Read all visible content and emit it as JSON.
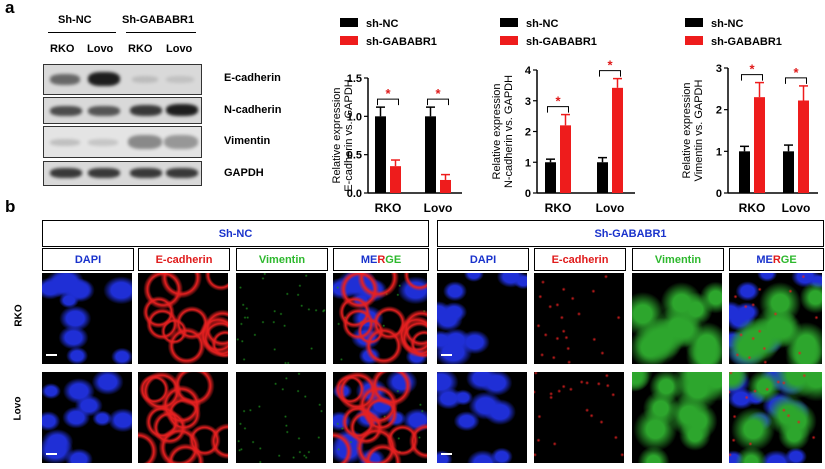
{
  "panel_a": {
    "letter": "a",
    "western_blot": {
      "groups": [
        "Sh-NC",
        "Sh-GABABR1"
      ],
      "lanes": [
        "RKO",
        "Lovo",
        "RKO",
        "Lovo"
      ],
      "proteins": [
        "E-cadherin",
        "N-cadherin",
        "Vimentin",
        "GAPDH"
      ]
    }
  },
  "panel_b": {
    "letter": "b",
    "groups": [
      "Sh-NC",
      "Sh-GABABR1"
    ],
    "channels": [
      "DAPI",
      "E-cadherin",
      "Vimentin",
      "MERGE"
    ],
    "merge_letters": [
      "ME",
      "R",
      "GE"
    ],
    "rows": [
      "RKO",
      "Lovo"
    ]
  },
  "colors": {
    "black_series": "#000000",
    "red_series": "#ee1c1c",
    "dapi_label": "#1a33cc",
    "ecad_label": "#e01b1b",
    "vim_label": "#2db82d",
    "sig_star": "#e01b1b"
  },
  "chart_data": [
    {
      "type": "bar",
      "categories": [
        "RKO",
        "Lovo"
      ],
      "series": [
        {
          "name": "sh-NC",
          "values": [
            1.0,
            1.0
          ],
          "errors": [
            0.12,
            0.12
          ]
        },
        {
          "name": "sh-GABABR1",
          "values": [
            0.35,
            0.17
          ],
          "errors": [
            0.08,
            0.07
          ]
        }
      ],
      "ylabel": [
        "Relative expression",
        "E-cadherin vs. GAPDH"
      ],
      "ylim": [
        0,
        1.5
      ],
      "yticks": [
        "0.0",
        "0.5",
        "1.0",
        "1.5"
      ],
      "significance": [
        "*",
        "*"
      ],
      "legend": "top"
    },
    {
      "type": "bar",
      "categories": [
        "RKO",
        "Lovo"
      ],
      "series": [
        {
          "name": "sh-NC",
          "values": [
            1.0,
            1.0
          ],
          "errors": [
            0.1,
            0.15
          ]
        },
        {
          "name": "sh-GABABR1",
          "values": [
            2.2,
            3.42
          ],
          "errors": [
            0.35,
            0.3
          ]
        }
      ],
      "ylabel": [
        "Relative expression",
        "N-cadherin vs. GAPDH"
      ],
      "ylim": [
        0,
        4
      ],
      "yticks": [
        "0",
        "1",
        "2",
        "3",
        "4"
      ],
      "significance": [
        "*",
        "*"
      ],
      "legend": "top"
    },
    {
      "type": "bar",
      "categories": [
        "RKO",
        "Lovo"
      ],
      "series": [
        {
          "name": "sh-NC",
          "values": [
            1.0,
            1.0
          ],
          "errors": [
            0.12,
            0.15
          ]
        },
        {
          "name": "sh-GABABR1",
          "values": [
            2.3,
            2.22
          ],
          "errors": [
            0.35,
            0.35
          ]
        }
      ],
      "ylabel": [
        "Relative expression",
        "Vimentin vs. GAPDH"
      ],
      "ylim": [
        0,
        3
      ],
      "yticks": [
        "0",
        "1",
        "2",
        "3"
      ],
      "significance": [
        "*",
        "*"
      ],
      "legend": "top"
    }
  ]
}
